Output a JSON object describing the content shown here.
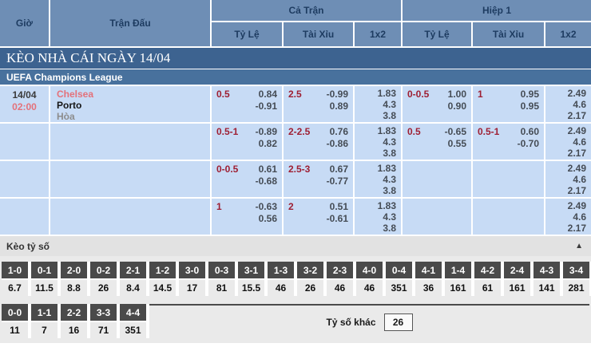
{
  "header": {
    "col_time": "Giờ",
    "col_match": "Trận Đấu",
    "group_full": "Cả Trận",
    "group_half": "Hiệp 1",
    "sub_hdp": "Tỷ Lệ",
    "sub_ou": "Tài Xỉu",
    "sub_1x2": "1x2"
  },
  "banner": {
    "title": "KÈO NHÀ CÁI NGÀY 14/04"
  },
  "league": {
    "name": "UEFA Champions League"
  },
  "match": {
    "date": "14/04",
    "time": "02:00",
    "home": "Chelsea",
    "away": "Porto",
    "draw": "Hòa"
  },
  "odds": {
    "rows": [
      {
        "ft_hdp": {
          "hc": "0.5",
          "v1": "0.84",
          "v2": "-0.91"
        },
        "ft_ou": {
          "hc": "2.5",
          "v1": "-0.99",
          "v2": "0.89"
        },
        "ft_1x2": [
          "1.83",
          "4.3",
          "3.8"
        ],
        "h1_hdp": {
          "hc": "0-0.5",
          "v1": "1.00",
          "v2": "0.90"
        },
        "h1_ou": {
          "hc": "1",
          "v1": "0.95",
          "v2": "0.95"
        },
        "h1_1x2": [
          "2.49",
          "4.6",
          "2.17"
        ]
      },
      {
        "ft_hdp": {
          "hc": "0.5-1",
          "v1": "-0.89",
          "v2": "0.82"
        },
        "ft_ou": {
          "hc": "2-2.5",
          "v1": "0.76",
          "v2": "-0.86"
        },
        "ft_1x2": [
          "1.83",
          "4.3",
          "3.8"
        ],
        "h1_hdp": {
          "hc": "0.5",
          "v1": "-0.65",
          "v2": "0.55"
        },
        "h1_ou": {
          "hc": "0.5-1",
          "v1": "0.60",
          "v2": "-0.70"
        },
        "h1_1x2": [
          "2.49",
          "4.6",
          "2.17"
        ]
      },
      {
        "ft_hdp": {
          "hc": "0-0.5",
          "v1": "0.61",
          "v2": "-0.68"
        },
        "ft_ou": {
          "hc": "2.5-3",
          "v1": "0.67",
          "v2": "-0.77"
        },
        "ft_1x2": [
          "1.83",
          "4.3",
          "3.8"
        ],
        "h1_hdp": {
          "hc": "",
          "v1": "",
          "v2": ""
        },
        "h1_ou": {
          "hc": "",
          "v1": "",
          "v2": ""
        },
        "h1_1x2": [
          "2.49",
          "4.6",
          "2.17"
        ]
      },
      {
        "ft_hdp": {
          "hc": "1",
          "v1": "-0.63",
          "v2": "0.56"
        },
        "ft_ou": {
          "hc": "2",
          "v1": "0.51",
          "v2": "-0.61"
        },
        "ft_1x2": [
          "1.83",
          "4.3",
          "3.8"
        ],
        "h1_hdp": {
          "hc": "",
          "v1": "",
          "v2": ""
        },
        "h1_ou": {
          "hc": "",
          "v1": "",
          "v2": ""
        },
        "h1_1x2": [
          "2.49",
          "4.6",
          "2.17"
        ]
      }
    ]
  },
  "score_section": {
    "title": "Kèo tỷ số",
    "collapse_icon": "▲",
    "row1": [
      {
        "s": "1-0",
        "o": "6.7"
      },
      {
        "s": "0-1",
        "o": "11.5"
      },
      {
        "s": "2-0",
        "o": "8.8"
      },
      {
        "s": "0-2",
        "o": "26"
      },
      {
        "s": "2-1",
        "o": "8.4"
      },
      {
        "s": "1-2",
        "o": "14.5"
      },
      {
        "s": "3-0",
        "o": "17"
      },
      {
        "s": "0-3",
        "o": "81"
      },
      {
        "s": "3-1",
        "o": "15.5"
      },
      {
        "s": "1-3",
        "o": "46"
      },
      {
        "s": "3-2",
        "o": "26"
      },
      {
        "s": "2-3",
        "o": "46"
      },
      {
        "s": "4-0",
        "o": "46"
      },
      {
        "s": "0-4",
        "o": "351"
      },
      {
        "s": "4-1",
        "o": "36"
      },
      {
        "s": "1-4",
        "o": "161"
      },
      {
        "s": "4-2",
        "o": "61"
      },
      {
        "s": "2-4",
        "o": "161"
      },
      {
        "s": "4-3",
        "o": "141"
      },
      {
        "s": "3-4",
        "o": "281"
      }
    ],
    "row2": [
      {
        "s": "0-0",
        "o": "11"
      },
      {
        "s": "1-1",
        "o": "7"
      },
      {
        "s": "2-2",
        "o": "16"
      },
      {
        "s": "3-3",
        "o": "71"
      },
      {
        "s": "4-4",
        "o": "351"
      }
    ],
    "other_label": "Tỷ số khác",
    "other_value": "26"
  },
  "colors": {
    "header_blue": "#6e8eb5",
    "banner_blue": "#3d6390",
    "league_blue": "#48719d",
    "row_blue": "#c7dbf5",
    "handicap_red": "#9e1f33",
    "team_red": "#e4717a",
    "score_header_gray": "#4a4a4a"
  }
}
